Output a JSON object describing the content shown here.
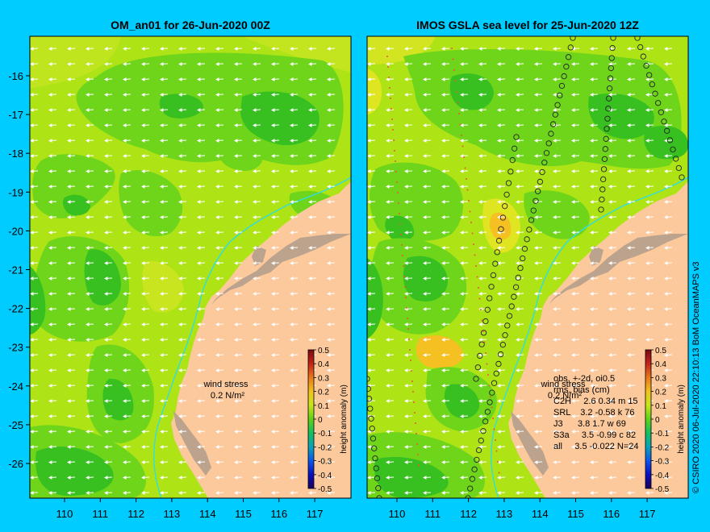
{
  "left_panel": {
    "title": "OM_an01 for 26-Jun-2020 00Z",
    "annotation": [
      "wind stress",
      "0.2 N/m²"
    ]
  },
  "right_panel": {
    "title": "IMOS GSLA sea level  for 25-Jun-2020 12Z",
    "annotation": [
      "wind stress",
      "0.2 N/m²"
    ],
    "stats": [
      "obs, +-2d, oi0.5",
      "rms, bias (cm)",
      "C2H     2.6 0.34 m 15",
      "SRL    3.2 -0.58 k 76",
      "J3      3.8 1.7 w 69",
      "S3a     3.5 -0.99 c 82",
      "all     3.5 -0.022 N=24"
    ]
  },
  "axes": {
    "lon_ticks": [
      "110",
      "111",
      "112",
      "113",
      "114",
      "115",
      "116",
      "117"
    ],
    "lat_ticks": [
      "-16",
      "-17",
      "-18",
      "-19",
      "-20",
      "-21",
      "-22",
      "-23",
      "-24",
      "-25",
      "-26"
    ]
  },
  "colorbar": {
    "label": "height anomaly  (m)",
    "ticks": [
      "0.5",
      "0.4",
      "0.3",
      "0.2",
      "0.1",
      "0",
      "-0.1",
      "-0.2",
      "-0.3",
      "-0.4",
      "-0.5"
    ]
  },
  "credit": "© CSIRO 2020   06-Jul-2020 22:10:13 BoM OceanMAPS v3",
  "colors": {
    "background": "#00ccff",
    "land": "#fcc99c",
    "sea_base": "#aee316",
    "sea_low": "#6ed51b",
    "sea_lower": "#37c020",
    "sea_high": "#e0e522",
    "sea_higher": "#f5c022",
    "coast_shelf": "#bba38e",
    "isobath": "#33dddd"
  }
}
